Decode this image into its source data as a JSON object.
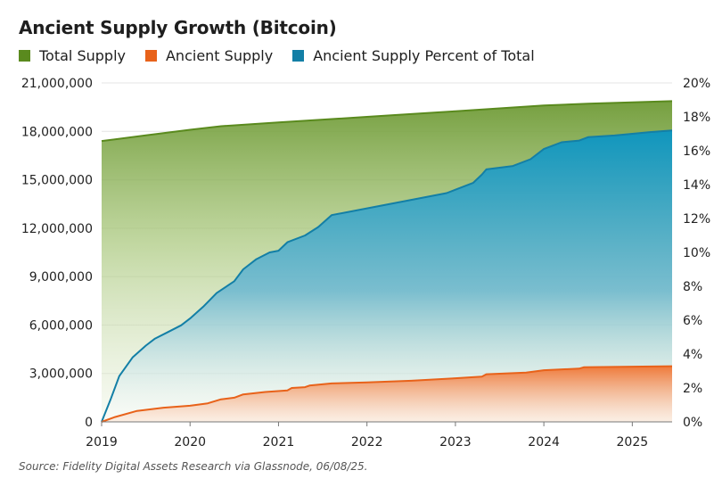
{
  "title": "Ancient Supply Growth (Bitcoin)",
  "source": "Source: Fidelity Digital Assets Research via Glassnode, 06/08/25.",
  "chart_data": {
    "type": "area",
    "x_ticks": [
      "2019",
      "2020",
      "2021",
      "2022",
      "2023",
      "2024",
      "2025"
    ],
    "x_range": [
      2019.0,
      2025.45
    ],
    "y_left": {
      "range": [
        0,
        21000000
      ],
      "ticks": [
        0,
        3000000,
        6000000,
        9000000,
        12000000,
        15000000,
        18000000,
        21000000
      ],
      "tick_labels": [
        "0",
        "3,000,000",
        "6,000,000",
        "9,000,000",
        "12,000,000",
        "15,000,000",
        "18,000,000",
        "21,000,000"
      ]
    },
    "y_right": {
      "range": [
        0,
        20
      ],
      "ticks": [
        0,
        2,
        4,
        6,
        8,
        10,
        12,
        14,
        16,
        18,
        20
      ],
      "tick_labels": [
        "0%",
        "2%",
        "4%",
        "6%",
        "8%",
        "10%",
        "12%",
        "14%",
        "16%",
        "18%",
        "20%"
      ]
    },
    "grid": true,
    "series": [
      {
        "name": "Total Supply",
        "axis": "left",
        "color": "#5a8a1e",
        "points": [
          [
            2019.0,
            17400000
          ],
          [
            2019.5,
            17750000
          ],
          [
            2020.0,
            18100000
          ],
          [
            2020.35,
            18320000
          ],
          [
            2021.0,
            18550000
          ],
          [
            2022.0,
            18900000
          ],
          [
            2023.0,
            19250000
          ],
          [
            2024.0,
            19600000
          ],
          [
            2024.5,
            19720000
          ],
          [
            2025.0,
            19800000
          ],
          [
            2025.45,
            19870000
          ]
        ]
      },
      {
        "name": "Ancient Supply",
        "axis": "left",
        "color": "#e8621a",
        "points": [
          [
            2019.0,
            0
          ],
          [
            2019.15,
            300000
          ],
          [
            2019.4,
            680000
          ],
          [
            2019.7,
            880000
          ],
          [
            2020.0,
            1000000
          ],
          [
            2020.2,
            1150000
          ],
          [
            2020.35,
            1400000
          ],
          [
            2020.5,
            1500000
          ],
          [
            2020.6,
            1700000
          ],
          [
            2020.85,
            1850000
          ],
          [
            2021.1,
            1950000
          ],
          [
            2021.15,
            2100000
          ],
          [
            2021.3,
            2150000
          ],
          [
            2021.35,
            2250000
          ],
          [
            2021.6,
            2380000
          ],
          [
            2022.0,
            2450000
          ],
          [
            2022.5,
            2550000
          ],
          [
            2023.0,
            2700000
          ],
          [
            2023.3,
            2800000
          ],
          [
            2023.35,
            2950000
          ],
          [
            2023.8,
            3050000
          ],
          [
            2024.0,
            3200000
          ],
          [
            2024.4,
            3300000
          ],
          [
            2024.45,
            3380000
          ],
          [
            2025.0,
            3420000
          ],
          [
            2025.45,
            3450000
          ]
        ]
      },
      {
        "name": "Ancient Supply Percent of Total",
        "axis": "right",
        "color": "#137fa6",
        "points": [
          [
            2019.0,
            0
          ],
          [
            2019.1,
            1.3
          ],
          [
            2019.2,
            2.7
          ],
          [
            2019.35,
            3.8
          ],
          [
            2019.5,
            4.5
          ],
          [
            2019.6,
            4.9
          ],
          [
            2019.75,
            5.3
          ],
          [
            2019.9,
            5.7
          ],
          [
            2020.0,
            6.1
          ],
          [
            2020.15,
            6.8
          ],
          [
            2020.3,
            7.6
          ],
          [
            2020.5,
            8.3
          ],
          [
            2020.6,
            9.0
          ],
          [
            2020.75,
            9.6
          ],
          [
            2020.9,
            10.0
          ],
          [
            2021.0,
            10.1
          ],
          [
            2021.1,
            10.6
          ],
          [
            2021.3,
            11.0
          ],
          [
            2021.45,
            11.5
          ],
          [
            2021.6,
            12.2
          ],
          [
            2022.0,
            12.6
          ],
          [
            2022.5,
            13.1
          ],
          [
            2022.9,
            13.5
          ],
          [
            2023.0,
            13.7
          ],
          [
            2023.2,
            14.1
          ],
          [
            2023.3,
            14.6
          ],
          [
            2023.35,
            14.9
          ],
          [
            2023.65,
            15.1
          ],
          [
            2023.85,
            15.5
          ],
          [
            2024.0,
            16.1
          ],
          [
            2024.2,
            16.5
          ],
          [
            2024.4,
            16.6
          ],
          [
            2024.5,
            16.8
          ],
          [
            2024.8,
            16.9
          ],
          [
            2025.0,
            17.0
          ],
          [
            2025.2,
            17.1
          ],
          [
            2025.45,
            17.2
          ]
        ]
      }
    ]
  }
}
